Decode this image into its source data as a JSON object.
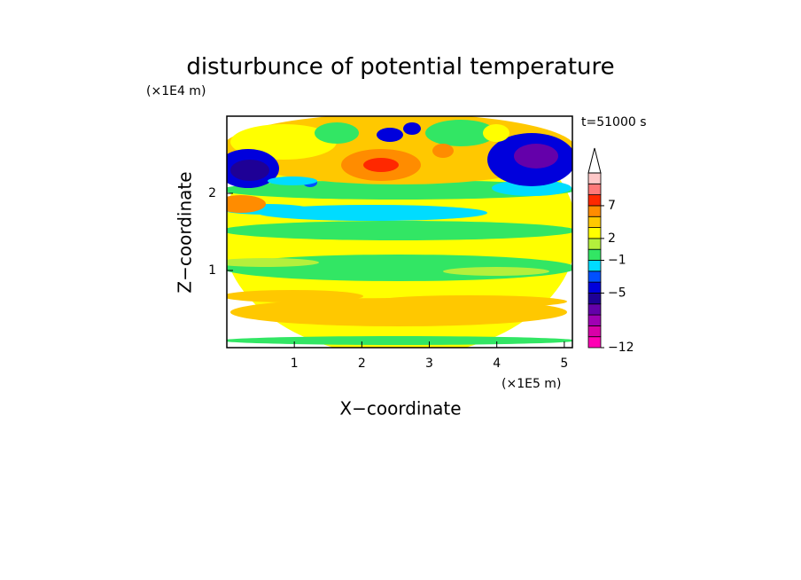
{
  "chart_data": {
    "type": "contour",
    "title": "disturbunce of potential temperature",
    "xlabel": "X−coordinate",
    "ylabel": "Z−coordinate",
    "x_unit": "(×1E5 m)",
    "y_unit": "(×1E4 m)",
    "annotation": "t=51000 s",
    "xlim": [
      0,
      5.12
    ],
    "ylim": [
      0,
      3
    ],
    "xticks": [
      1,
      2,
      3,
      4,
      5
    ],
    "yticks": [
      1,
      2
    ],
    "colorbar": {
      "bounds": [
        -12,
        -10,
        -8,
        -7,
        -6,
        -5,
        -4,
        -3,
        -1,
        0,
        2,
        3,
        5,
        7,
        8,
        9,
        11
      ],
      "colors": [
        "#ff00b4",
        "#d800a8",
        "#a000b4",
        "#6400aa",
        "#1e0096",
        "#0000dc",
        "#0050ff",
        "#00dcff",
        "#32e664",
        "#b4f03c",
        "#ffff00",
        "#ffc800",
        "#ff8c00",
        "#ff2800",
        "#ff7878",
        "#ffc8c8"
      ],
      "ticks": [
        {
          "value": -12,
          "label": "−12"
        },
        {
          "value": -5,
          "label": "−5"
        },
        {
          "value": -1,
          "label": "−1"
        },
        2,
        7
      ]
    }
  }
}
